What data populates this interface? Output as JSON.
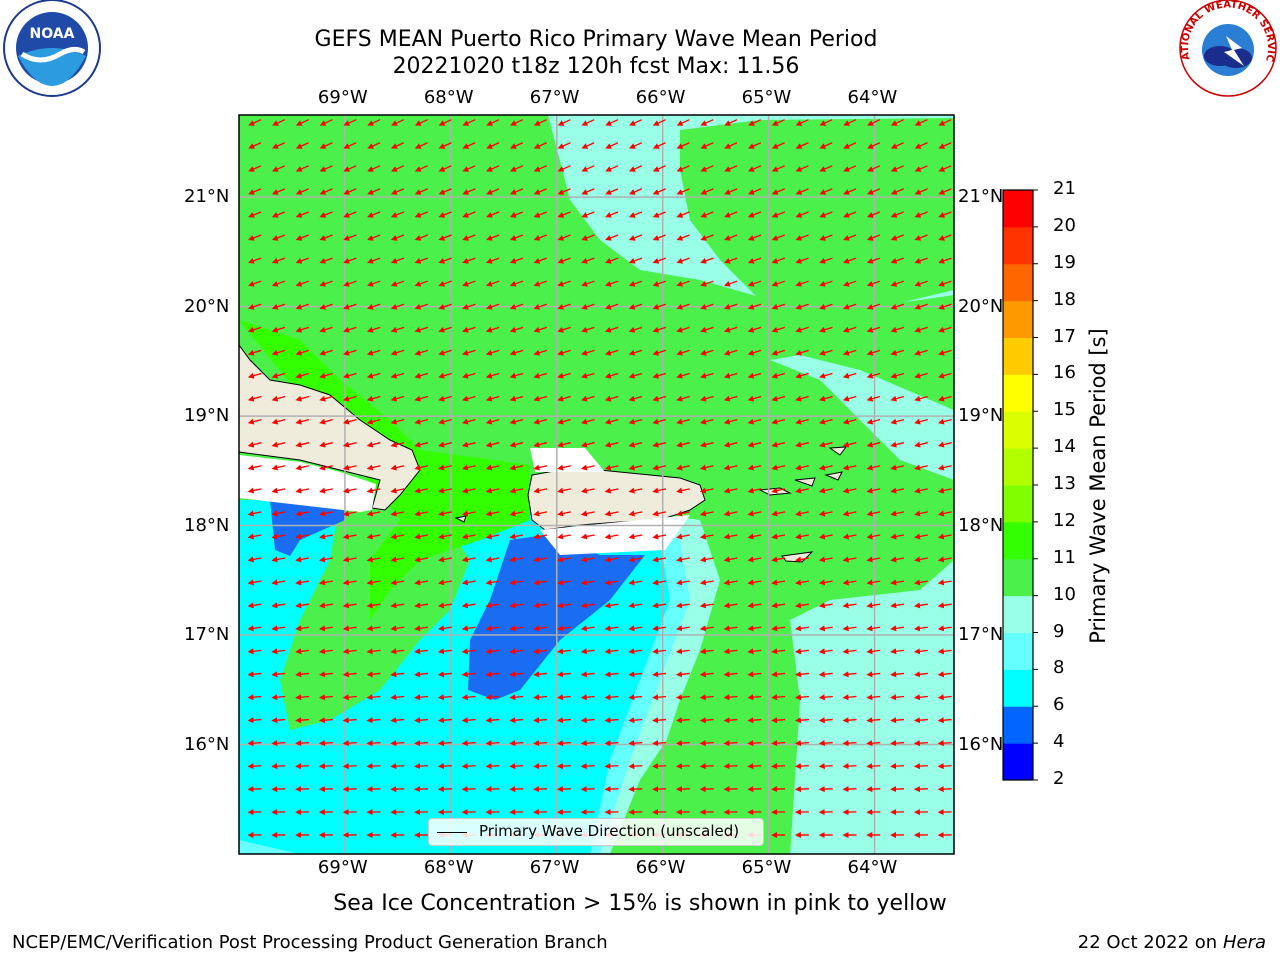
{
  "title": {
    "line1": "GEFS MEAN Puerto Rico Primary Wave Mean Period",
    "line2": "20221020 t18z 120h fcst   Max: 11.56"
  },
  "map": {
    "lon_ticks": [
      "69°W",
      "68°W",
      "67°W",
      "66°W",
      "65°W",
      "64°W"
    ],
    "lat_ticks": [
      "21°N",
      "20°N",
      "19°N",
      "18°N",
      "17°N",
      "16°N"
    ],
    "lon_range": [
      -70.0,
      -63.25
    ],
    "lat_range": [
      15.0,
      21.75
    ],
    "grid": true,
    "arrow_color": "#ff0000",
    "land_color": "#efecdc",
    "legend": "Primary Wave Direction (unscaled)",
    "legend_position": "bottom-center"
  },
  "colorbar": {
    "label": "Primary Wave Mean Period [s]",
    "ticks": [
      "21",
      "20",
      "19",
      "18",
      "17",
      "16",
      "15",
      "14",
      "13",
      "12",
      "11",
      "10",
      "9",
      "8",
      "6",
      "4",
      "2"
    ],
    "colors": [
      "#0000ff",
      "#0066ff",
      "#00ffff",
      "#66ffff",
      "#99ffe6",
      "#4bf04b",
      "#33ff00",
      "#80ff00",
      "#b3ff00",
      "#d9ff00",
      "#ffff00",
      "#ffcc00",
      "#ff9900",
      "#ff6600",
      "#ff3300",
      "#ff0000"
    ]
  },
  "logos": {
    "left": "NOAA",
    "right": "NATIONAL WEATHER SERVICE"
  },
  "footer": {
    "note": "Sea Ice Concentration > 15% is shown in pink to yellow",
    "org": "NCEP/EMC/Verification Post Processing Product Generation Branch",
    "date": "22 Oct 2022 on",
    "host": "Hera"
  }
}
